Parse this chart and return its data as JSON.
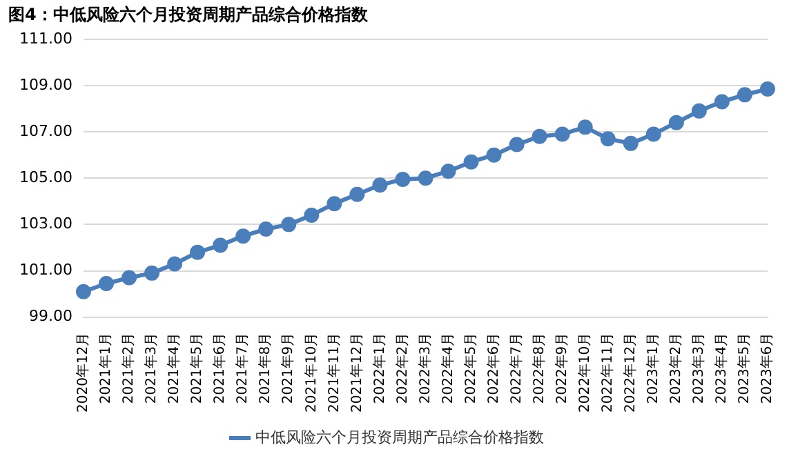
{
  "chart_data": {
    "type": "line",
    "title": "图4：中低风险六个月投资周期产品综合价格指数",
    "categories": [
      "2020年12月",
      "2021年1月",
      "2021年2月",
      "2021年3月",
      "2021年4月",
      "2021年5月",
      "2021年6月",
      "2021年7月",
      "2021年8月",
      "2021年9月",
      "2021年10月",
      "2021年11月",
      "2021年12月",
      "2022年1月",
      "2022年2月",
      "2022年3月",
      "2022年4月",
      "2022年5月",
      "2022年6月",
      "2022年7月",
      "2022年8月",
      "2022年9月",
      "2022年10月",
      "2022年11月",
      "2022年12月",
      "2023年1月",
      "2023年2月",
      "2023年3月",
      "2023年4月",
      "2023年5月",
      "2023年6月"
    ],
    "series": [
      {
        "name": "中低风险六个月投资周期产品综合价格指数",
        "color": "#4a7ebb",
        "values": [
          100.1,
          100.45,
          100.7,
          100.9,
          101.3,
          101.8,
          102.1,
          102.5,
          102.8,
          103.0,
          103.4,
          103.9,
          104.3,
          104.7,
          104.95,
          105.0,
          105.3,
          105.7,
          106.0,
          106.45,
          106.8,
          106.9,
          107.2,
          106.7,
          106.5,
          106.9,
          107.4,
          107.9,
          108.3,
          108.6,
          108.85
        ]
      }
    ],
    "ylim": [
      99,
      111
    ],
    "yticks": [
      {
        "value": 99,
        "label": "99.00"
      },
      {
        "value": 101,
        "label": "101.00"
      },
      {
        "value": 103,
        "label": "103.00"
      },
      {
        "value": 105,
        "label": "105.00"
      },
      {
        "value": 107,
        "label": "107.00"
      },
      {
        "value": 109,
        "label": "109.00"
      },
      {
        "value": 111,
        "label": "111.00"
      }
    ],
    "grid": "y",
    "legend": "bottom",
    "marker": "circle",
    "line_style": "solid"
  }
}
